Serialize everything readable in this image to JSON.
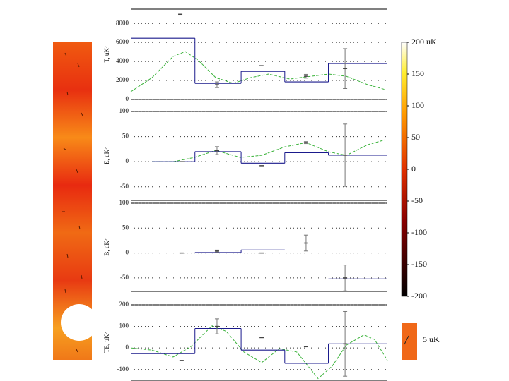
{
  "chart_data": [
    {
      "type": "line",
      "ylabel": "T, uK²",
      "xlim": [
        0,
        100
      ],
      "ylim": [
        0,
        9500
      ],
      "yticks": [
        0,
        2000,
        4000,
        6000,
        8000
      ],
      "grid": true,
      "series": [
        {
          "kind": "line",
          "color": "#3cb33c",
          "x": [
            0,
            8.3,
            16.5,
            21.2,
            26.2,
            33.1,
            39.9,
            46.8,
            53.7,
            62,
            70.2,
            77.1,
            84,
            92.3,
            99.2
          ],
          "values": [
            815,
            2300,
            4520,
            5040,
            4150,
            2300,
            1700,
            2300,
            2670,
            2150,
            2440,
            2670,
            2440,
            1560,
            1040
          ]
        },
        {
          "kind": "step",
          "color": "#1a1a8c",
          "bins": [
            0,
            25,
            43,
            60,
            77,
            100
          ],
          "values": [
            6444,
            1700,
            2960,
            1850,
            3780
          ]
        },
        {
          "kind": "errorbar",
          "color": "#777777",
          "x": [
            19.3,
            33.6,
            50.9,
            68.3,
            83.5
          ],
          "values": [
            8960,
            1550,
            3550,
            2440,
            3250
          ],
          "errors": [
            0,
            300,
            0,
            200,
            2100
          ]
        }
      ]
    },
    {
      "type": "line",
      "ylabel": "E, uK²",
      "xlim": [
        0,
        100
      ],
      "ylim": [
        -77,
        100
      ],
      "yticks": [
        -50,
        0,
        50,
        100
      ],
      "grid": true,
      "series": [
        {
          "kind": "line",
          "color": "#3cb33c",
          "x": [
            8.3,
            16.5,
            24.8,
            33.1,
            42.7,
            51,
            60,
            68.3,
            77.1,
            84,
            92.3,
            99.2
          ],
          "values": [
            0,
            0,
            8.5,
            22.5,
            8.5,
            12.7,
            29.6,
            38,
            19.7,
            12.7,
            33.8,
            43.7
          ]
        },
        {
          "kind": "step",
          "color": "#1a1a8c",
          "bins": [
            8.3,
            25,
            43,
            60,
            77,
            100
          ],
          "values": [
            0,
            20,
            -3,
            18,
            13
          ]
        },
        {
          "kind": "errorbar",
          "color": "#777777",
          "x": [
            20,
            33.6,
            51,
            68.3,
            83.5
          ],
          "values": [
            0,
            22,
            -8,
            38,
            13
          ],
          "errors": [
            0,
            8,
            0,
            2,
            62
          ]
        }
      ]
    },
    {
      "type": "line",
      "ylabel": "B, uK²",
      "xlim": [
        0,
        100
      ],
      "ylim": [
        -77,
        100
      ],
      "yticks": [
        -50,
        0,
        50,
        100
      ],
      "grid": true,
      "series": [
        {
          "kind": "step",
          "color": "#1a1a8c",
          "bins": [
            25,
            43,
            60,
            77,
            100
          ],
          "values": [
            1,
            6,
            null,
            -52
          ]
        },
        {
          "kind": "errorbar",
          "color": "#777777",
          "x": [
            19.8,
            33.6,
            51,
            68.3,
            83.5
          ],
          "values": [
            0,
            4,
            0,
            20,
            -50
          ],
          "errors": [
            0,
            2,
            0,
            16,
            26
          ]
        }
      ]
    },
    {
      "type": "line",
      "ylabel": "TE, uK²",
      "xlim": [
        0,
        100
      ],
      "ylim": [
        -150,
        200
      ],
      "yticks": [
        -100,
        0,
        100,
        200
      ],
      "grid": true,
      "series": [
        {
          "kind": "line",
          "color": "#3cb33c",
          "x": [
            0,
            8.3,
            16.5,
            23.4,
            31.7,
            37.2,
            44.1,
            51,
            57.9,
            64.7,
            73,
            78.5,
            84,
            90.9,
            95,
            100
          ],
          "values": [
            0,
            -10,
            -42,
            6,
            103,
            77,
            -19,
            -68,
            -3,
            -19,
            -142,
            -84,
            13,
            61,
            39,
            -58
          ]
        },
        {
          "kind": "step",
          "color": "#1a1a8c",
          "bins": [
            0,
            25,
            43,
            60,
            77,
            100
          ],
          "values": [
            -26,
            90,
            -10,
            -71,
            19
          ]
        },
        {
          "kind": "errorbar",
          "color": "#777777",
          "x": [
            19.8,
            33.6,
            51,
            68.3,
            83.5
          ],
          "values": [
            -58,
            100,
            48,
            6,
            19
          ],
          "errors": [
            0,
            35,
            0,
            0,
            150
          ]
        }
      ]
    },
    {
      "type": "colorbar",
      "ylim": [
        -200,
        200
      ],
      "yticks": [
        -200,
        -150,
        -100,
        -50,
        0,
        50,
        100,
        150,
        {
          "value": 200,
          "label": "200 uK"
        }
      ],
      "scale_label": "5 uK"
    }
  ]
}
